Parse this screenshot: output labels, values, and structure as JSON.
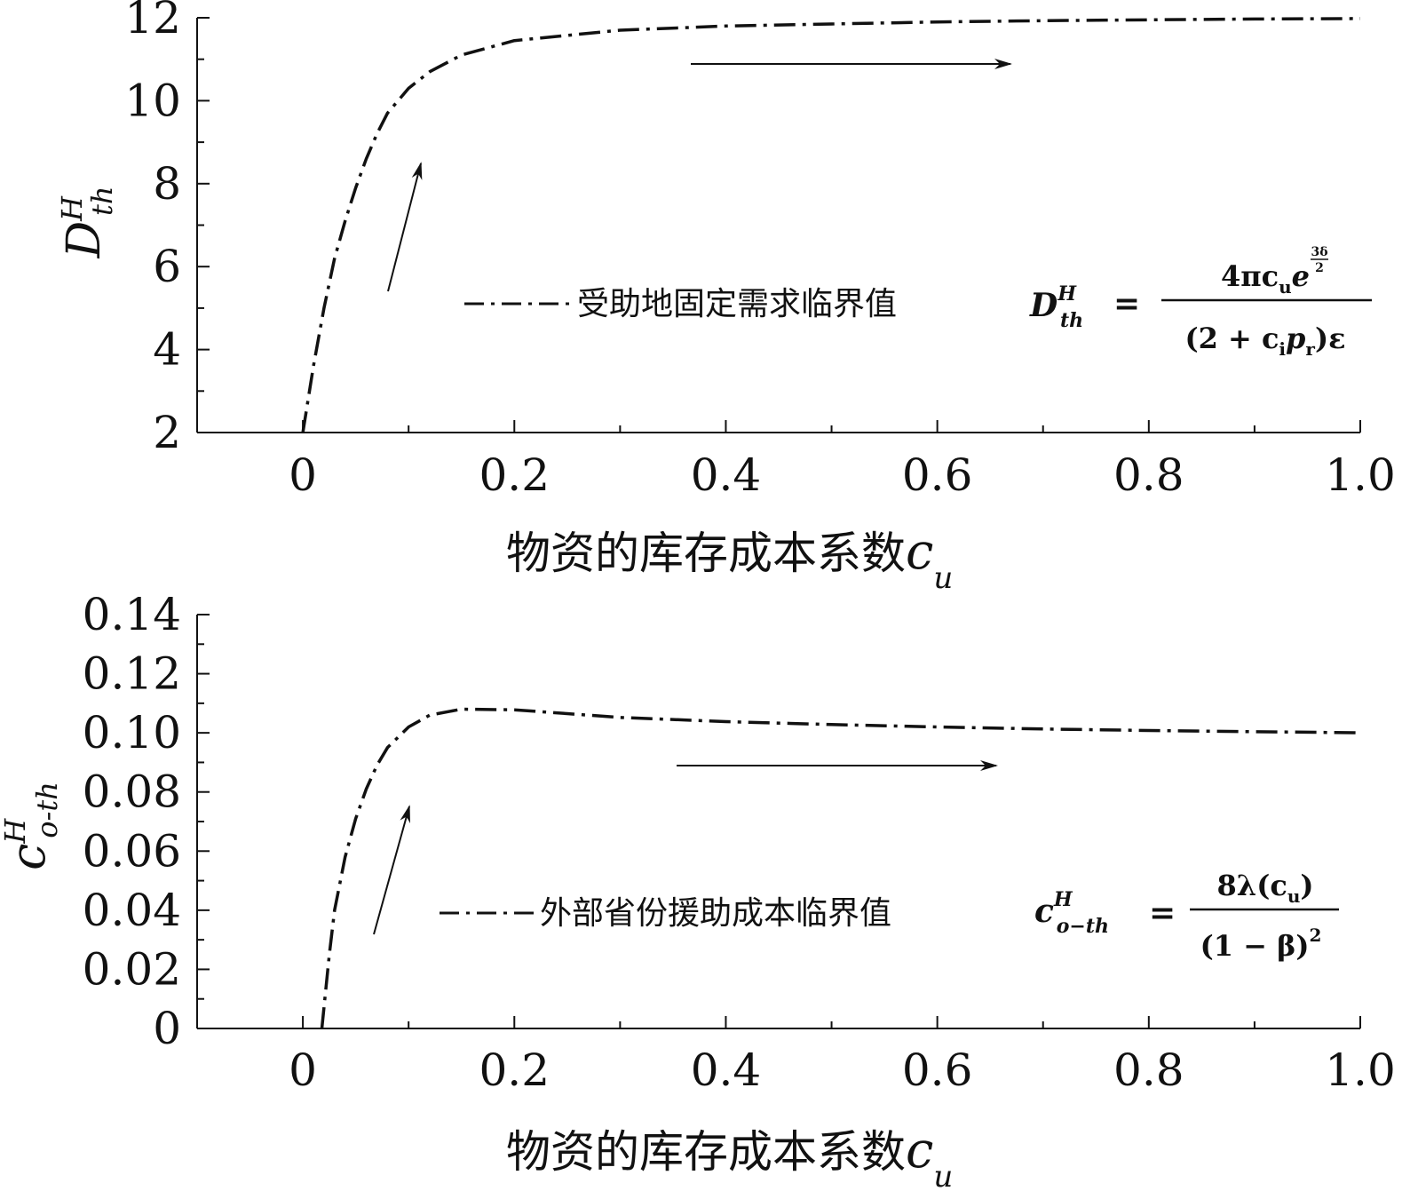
{
  "chart_data": [
    {
      "type": "line",
      "xlabel": "物资的库存成本系数",
      "xlabel_symbol": "c",
      "xlabel_sub": "u",
      "ylabel_symbol": "D",
      "ylabel_sup": "H",
      "ylabel_sub": "th",
      "xlim": [
        -0.1,
        1.0
      ],
      "ylim": [
        2,
        12
      ],
      "x_ticks": [
        0,
        0.2,
        0.4,
        0.6,
        0.8,
        1.0
      ],
      "x_tick_labels": [
        "0",
        "0.2",
        "0.4",
        "0.6",
        "0.8",
        "1.0"
      ],
      "y_ticks": [
        2,
        4,
        6,
        8,
        10,
        12
      ],
      "y_tick_labels": [
        "2",
        "4",
        "6",
        "8",
        "10",
        "12"
      ],
      "grid": false,
      "legend_position": "center-right",
      "series": [
        {
          "name": "受助地固定需求临界值",
          "style": "dash-dot",
          "color": "#111111",
          "points": [
            [
              0.0,
              2.0
            ],
            [
              0.01,
              3.6
            ],
            [
              0.02,
              5.0
            ],
            [
              0.03,
              6.2
            ],
            [
              0.04,
              7.1
            ],
            [
              0.05,
              7.9
            ],
            [
              0.06,
              8.6
            ],
            [
              0.07,
              9.2
            ],
            [
              0.08,
              9.7
            ],
            [
              0.1,
              10.3
            ],
            [
              0.12,
              10.7
            ],
            [
              0.15,
              11.1
            ],
            [
              0.2,
              11.45
            ],
            [
              0.3,
              11.7
            ],
            [
              0.4,
              11.8
            ],
            [
              0.5,
              11.85
            ],
            [
              0.6,
              11.9
            ],
            [
              0.7,
              11.93
            ],
            [
              0.8,
              11.95
            ],
            [
              0.9,
              11.97
            ],
            [
              1.0,
              11.98
            ]
          ]
        }
      ],
      "formula": {
        "lhs": "D",
        "lhs_sup": "H",
        "lhs_sub": "th",
        "numerator": "4πc",
        "numerator_sub": "u",
        "numerator_e": "e",
        "numerator_exp_top": "3δ",
        "numerator_exp_bottom": "2",
        "denominator_left": "(2 + c",
        "denominator_sub1": "i",
        "denominator_mid": "p",
        "denominator_sub2": "r",
        "denominator_right": ")ε"
      },
      "arrows": [
        "rising",
        "stabilizing"
      ]
    },
    {
      "type": "line",
      "xlabel": "物资的库存成本系数",
      "xlabel_symbol": "c",
      "xlabel_sub": "u",
      "ylabel_symbol": "c",
      "ylabel_sup": "H",
      "ylabel_sub": "o-th",
      "xlim": [
        -0.1,
        1.0
      ],
      "ylim": [
        0,
        0.14
      ],
      "x_ticks": [
        0,
        0.2,
        0.4,
        0.6,
        0.8,
        1.0
      ],
      "x_tick_labels": [
        "0",
        "0.2",
        "0.4",
        "0.6",
        "0.8",
        "1.0"
      ],
      "y_ticks": [
        0,
        0.02,
        0.04,
        0.06,
        0.08,
        0.1,
        0.12,
        0.14
      ],
      "y_tick_labels": [
        "0",
        "0.02",
        "0.04",
        "0.06",
        "0.08",
        "0.10",
        "0.12",
        "0.14"
      ],
      "grid": false,
      "legend_position": "center-right",
      "series": [
        {
          "name": "外部省份援助成本临界值",
          "style": "dash-dot",
          "color": "#111111",
          "points": [
            [
              0.018,
              0.0
            ],
            [
              0.025,
              0.025
            ],
            [
              0.03,
              0.04
            ],
            [
              0.04,
              0.058
            ],
            [
              0.05,
              0.071
            ],
            [
              0.06,
              0.081
            ],
            [
              0.07,
              0.089
            ],
            [
              0.08,
              0.095
            ],
            [
              0.1,
              0.102
            ],
            [
              0.12,
              0.106
            ],
            [
              0.15,
              0.108
            ],
            [
              0.2,
              0.1078
            ],
            [
              0.25,
              0.1065
            ],
            [
              0.3,
              0.1052
            ],
            [
              0.4,
              0.1038
            ],
            [
              0.5,
              0.1028
            ],
            [
              0.6,
              0.102
            ],
            [
              0.7,
              0.1013
            ],
            [
              0.8,
              0.1008
            ],
            [
              0.9,
              0.1004
            ],
            [
              1.0,
              0.1
            ]
          ]
        }
      ],
      "formula": {
        "lhs": "c",
        "lhs_sup": "H",
        "lhs_sub": "o−th",
        "numerator": "8λ(c",
        "numerator_sub": "u",
        "numerator_right": ")",
        "denominator": "(1 − β)",
        "denominator_sup": "2"
      },
      "arrows": [
        "rising",
        "stabilizing"
      ]
    }
  ]
}
